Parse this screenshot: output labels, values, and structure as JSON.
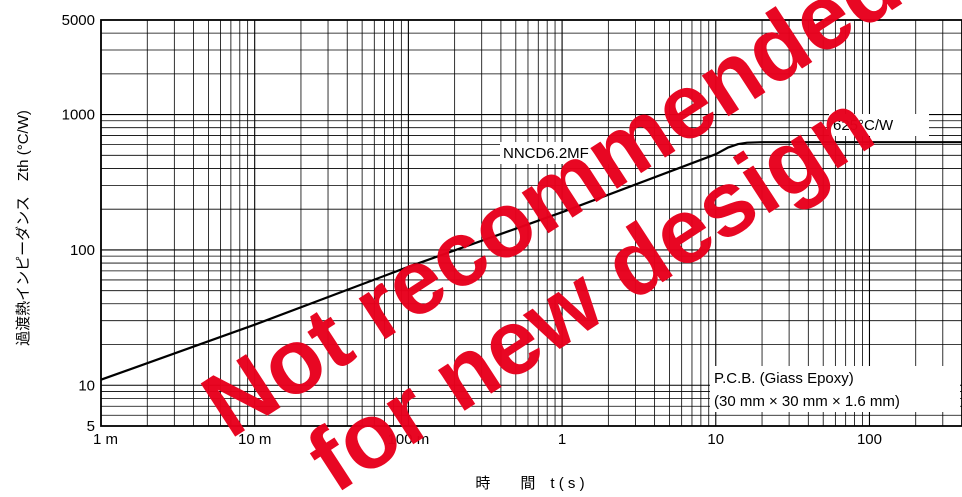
{
  "chart_data": {
    "type": "line",
    "title": "",
    "xlabel": "時　　間　t ( s )",
    "ylabel": "過渡熱インピーダンス　Zth (°C/W)",
    "x_scale": "log",
    "y_scale": "log",
    "xlim": [
      0.001,
      400
    ],
    "ylim": [
      5,
      5000
    ],
    "grid": true,
    "x_ticks": [
      {
        "value": 0.001,
        "label": "1 m"
      },
      {
        "value": 0.01,
        "label": "10 m"
      },
      {
        "value": 0.1,
        "label": "100 m"
      },
      {
        "value": 1,
        "label": "1"
      },
      {
        "value": 10,
        "label": "10"
      },
      {
        "value": 100,
        "label": "100"
      }
    ],
    "y_ticks": [
      {
        "value": 5,
        "label": "5"
      },
      {
        "value": 10,
        "label": "10"
      },
      {
        "value": 100,
        "label": "100"
      },
      {
        "value": 1000,
        "label": "1000"
      },
      {
        "value": 5000,
        "label": "5000"
      }
    ],
    "series": [
      {
        "name": "NNCD6.2MF",
        "color": "#000000",
        "x": [
          0.001,
          0.01,
          0.1,
          1,
          10,
          12,
          14,
          16,
          20,
          100,
          400
        ],
        "y": [
          11,
          28,
          75,
          190,
          510,
          570,
          605,
          620,
          625,
          625,
          625
        ]
      }
    ],
    "annotations": {
      "series_label": "NNCD6.2MF",
      "steady_value": "625°C/W",
      "board_line1": "P.C.B. (Giass Epoxy)",
      "board_line2": "(30 mm × 30 mm × 1.6 mm)"
    },
    "watermark": [
      "Not recommended",
      "for new design"
    ],
    "watermark_color": "#e8001c"
  }
}
